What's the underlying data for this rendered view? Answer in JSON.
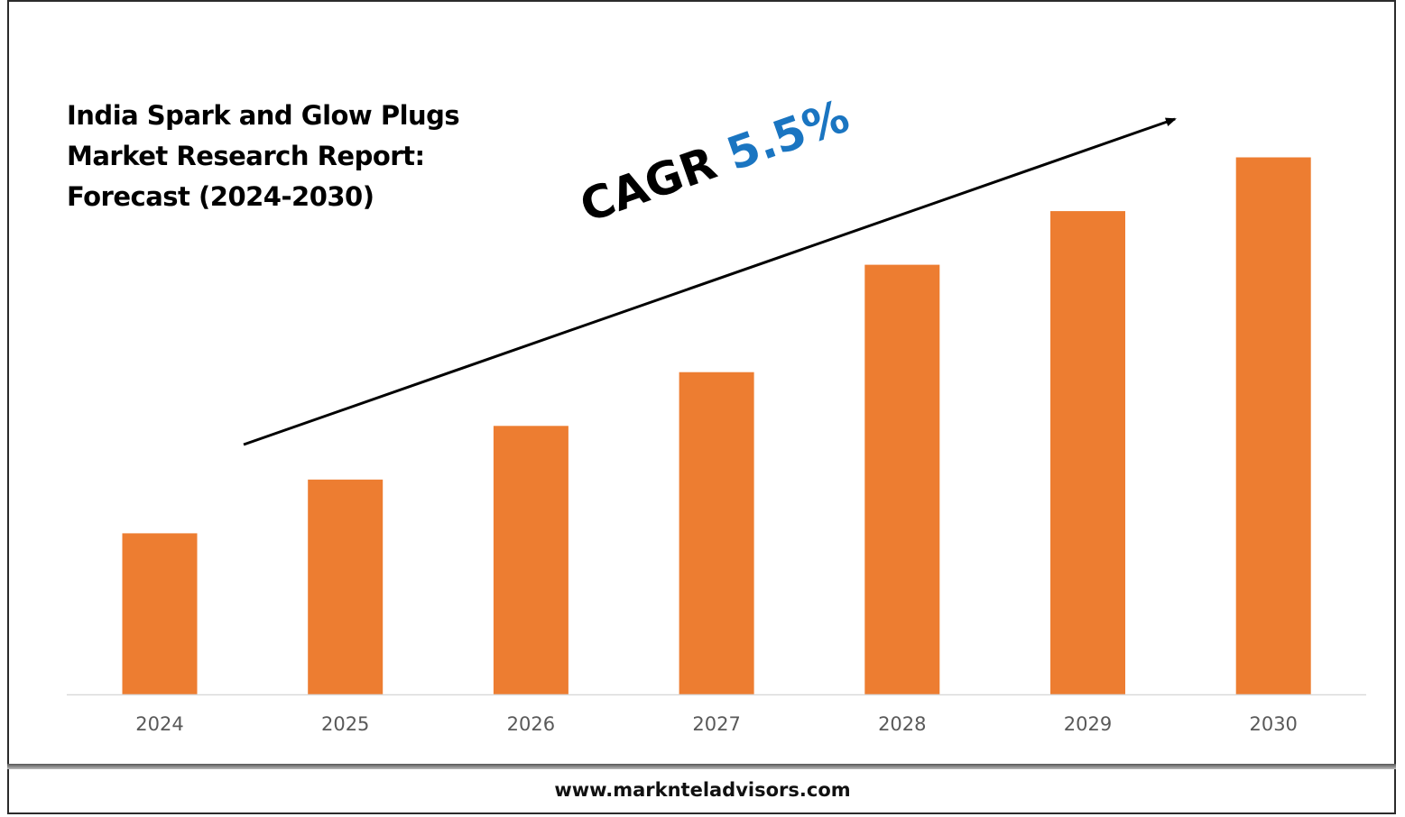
{
  "chart_data": {
    "type": "bar",
    "title_lines": [
      "India Spark and Glow Plugs",
      "Market Research Report:",
      "Forecast (2024-2030)"
    ],
    "categories": [
      "2024",
      "2025",
      "2026",
      "2027",
      "2028",
      "2029",
      "2030"
    ],
    "values": [
      30,
      40,
      50,
      60,
      80,
      90,
      100
    ],
    "ylim": [
      0,
      110
    ],
    "bar_color": "#ed7d31",
    "annotation": {
      "label": "CAGR",
      "value": "5.5%",
      "value_color": "#1a75c1"
    },
    "grid": false,
    "legend": "none"
  },
  "footer": {
    "website": "www.marknteladvisors.com"
  }
}
